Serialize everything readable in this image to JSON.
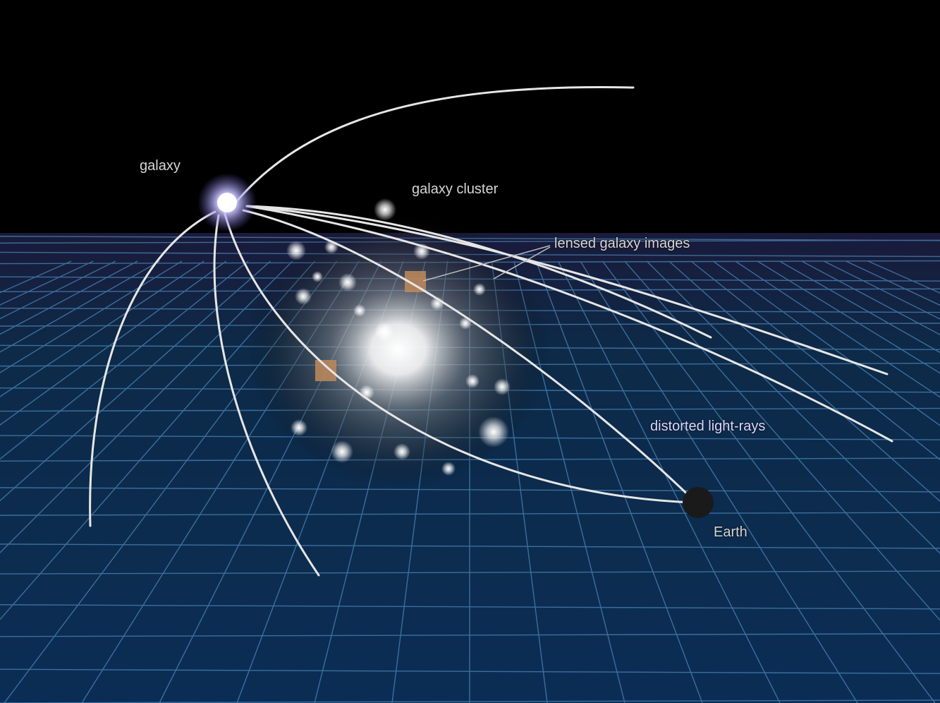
{
  "labels": {
    "galaxy": "galaxy",
    "galaxy_cluster": "galaxy cluster",
    "lensed_galaxy_images": "lensed galaxy images",
    "distorted_light_rays": "distorted light-rays",
    "earth": "Earth"
  },
  "colors": {
    "space": "#000000",
    "grid_plane": "#0a2a4a",
    "grid_lines": "#4a86b8",
    "light_ray": "#e6e6e6",
    "ray_tip": "#9fd8ff",
    "galaxy_glow": "#b9b4ff",
    "earth": "#1a1a1a"
  }
}
